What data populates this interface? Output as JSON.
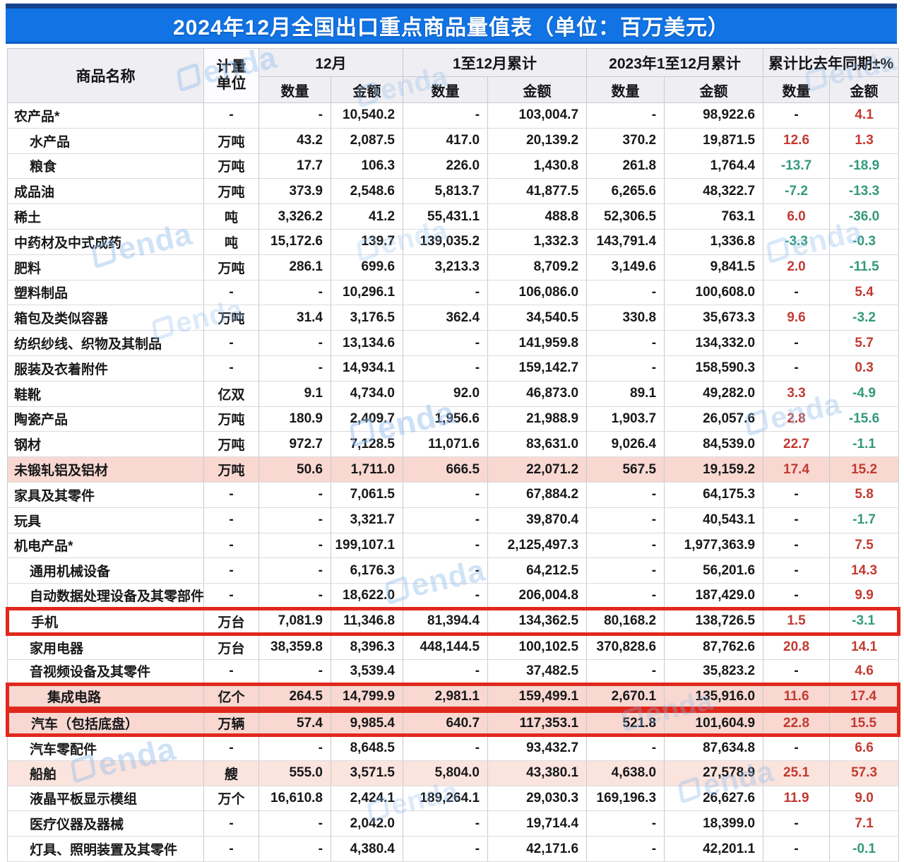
{
  "title": "2024年12月全国出口重点商品量值表（单位：百万美元）",
  "watermark": {
    "text": "enda"
  },
  "colors": {
    "title_bar": "#1173e4",
    "positive_pct": "#c23a31",
    "negative_pct": "#33997b",
    "highlight_pink": "#f8d8d1",
    "highlight_pink_light": "#fbe4de",
    "red_box_border": "#e0281c"
  },
  "table": {
    "header": {
      "commodity": "商品名称",
      "unit_line1": "计量",
      "unit_line2": "单位",
      "groups": [
        "12月",
        "1至12月累计",
        "2023年1至12月累计",
        "累计比去年同期±%"
      ],
      "quantity": "数量",
      "value": "金额"
    },
    "rows": [
      {
        "name": "农产品*",
        "indent": 0,
        "unit": "-",
        "q12": "-",
        "v12": "10,540.2",
        "qc": "-",
        "vc": "103,004.7",
        "q23": "-",
        "v23": "98,922.6",
        "qp": "-",
        "vp": "4.1",
        "highlight": "none",
        "box": false
      },
      {
        "name": "水产品",
        "indent": 1,
        "unit": "万吨",
        "q12": "43.2",
        "v12": "2,087.5",
        "qc": "417.0",
        "vc": "20,139.2",
        "q23": "370.2",
        "v23": "19,871.5",
        "qp": "12.6",
        "vp": "1.3",
        "highlight": "none",
        "box": false
      },
      {
        "name": "粮食",
        "indent": 1,
        "unit": "万吨",
        "q12": "17.7",
        "v12": "106.3",
        "qc": "226.0",
        "vc": "1,430.8",
        "q23": "261.8",
        "v23": "1,764.4",
        "qp": "-13.7",
        "vp": "-18.9",
        "highlight": "none",
        "box": false
      },
      {
        "name": "成品油",
        "indent": 0,
        "unit": "万吨",
        "q12": "373.9",
        "v12": "2,548.6",
        "qc": "5,813.7",
        "vc": "41,877.5",
        "q23": "6,265.6",
        "v23": "48,322.7",
        "qp": "-7.2",
        "vp": "-13.3",
        "highlight": "none",
        "box": false
      },
      {
        "name": "稀土",
        "indent": 0,
        "unit": "吨",
        "q12": "3,326.2",
        "v12": "41.2",
        "qc": "55,431.1",
        "vc": "488.8",
        "q23": "52,306.5",
        "v23": "763.1",
        "qp": "6.0",
        "vp": "-36.0",
        "highlight": "none",
        "box": false
      },
      {
        "name": "中药材及中式成药",
        "indent": 0,
        "unit": "吨",
        "q12": "15,172.6",
        "v12": "139.7",
        "qc": "139,035.2",
        "vc": "1,332.3",
        "q23": "143,791.4",
        "v23": "1,336.8",
        "qp": "-3.3",
        "vp": "-0.3",
        "highlight": "none",
        "box": false
      },
      {
        "name": "肥料",
        "indent": 0,
        "unit": "万吨",
        "q12": "286.1",
        "v12": "699.6",
        "qc": "3,213.3",
        "vc": "8,709.2",
        "q23": "3,149.6",
        "v23": "9,841.5",
        "qp": "2.0",
        "vp": "-11.5",
        "highlight": "none",
        "box": false
      },
      {
        "name": "塑料制品",
        "indent": 0,
        "unit": "-",
        "q12": "-",
        "v12": "10,296.1",
        "qc": "-",
        "vc": "106,086.0",
        "q23": "-",
        "v23": "100,608.0",
        "qp": "-",
        "vp": "5.4",
        "highlight": "none",
        "box": false
      },
      {
        "name": "箱包及类似容器",
        "indent": 0,
        "unit": "万吨",
        "q12": "31.4",
        "v12": "3,176.5",
        "qc": "362.4",
        "vc": "34,540.5",
        "q23": "330.8",
        "v23": "35,673.3",
        "qp": "9.6",
        "vp": "-3.2",
        "highlight": "none",
        "box": false
      },
      {
        "name": "纺织纱线、织物及其制品",
        "indent": 0,
        "unit": "-",
        "q12": "-",
        "v12": "13,134.6",
        "qc": "-",
        "vc": "141,959.8",
        "q23": "-",
        "v23": "134,332.0",
        "qp": "-",
        "vp": "5.7",
        "highlight": "none",
        "box": false
      },
      {
        "name": "服装及衣着附件",
        "indent": 0,
        "unit": "-",
        "q12": "-",
        "v12": "14,934.1",
        "qc": "-",
        "vc": "159,142.7",
        "q23": "-",
        "v23": "158,590.3",
        "qp": "-",
        "vp": "0.3",
        "highlight": "none",
        "box": false
      },
      {
        "name": "鞋靴",
        "indent": 0,
        "unit": "亿双",
        "q12": "9.1",
        "v12": "4,734.0",
        "qc": "92.0",
        "vc": "46,873.0",
        "q23": "89.1",
        "v23": "49,282.0",
        "qp": "3.3",
        "vp": "-4.9",
        "highlight": "none",
        "box": false
      },
      {
        "name": "陶瓷产品",
        "indent": 0,
        "unit": "万吨",
        "q12": "180.9",
        "v12": "2,409.7",
        "qc": "1,956.6",
        "vc": "21,988.9",
        "q23": "1,903.7",
        "v23": "26,057.6",
        "qp": "2.8",
        "vp": "-15.6",
        "highlight": "none",
        "box": false
      },
      {
        "name": "钢材",
        "indent": 0,
        "unit": "万吨",
        "q12": "972.7",
        "v12": "7,128.5",
        "qc": "11,071.6",
        "vc": "83,631.0",
        "q23": "9,026.4",
        "v23": "84,539.0",
        "qp": "22.7",
        "vp": "-1.1",
        "highlight": "none",
        "box": false
      },
      {
        "name": "未锻轧铝及铝材",
        "indent": 0,
        "unit": "万吨",
        "q12": "50.6",
        "v12": "1,711.0",
        "qc": "666.5",
        "vc": "22,071.2",
        "q23": "567.5",
        "v23": "19,159.2",
        "qp": "17.4",
        "vp": "15.2",
        "highlight": "pink",
        "box": false
      },
      {
        "name": "家具及其零件",
        "indent": 0,
        "unit": "-",
        "q12": "-",
        "v12": "7,061.5",
        "qc": "-",
        "vc": "67,884.2",
        "q23": "-",
        "v23": "64,175.3",
        "qp": "-",
        "vp": "5.8",
        "highlight": "none",
        "box": false
      },
      {
        "name": "玩具",
        "indent": 0,
        "unit": "-",
        "q12": "-",
        "v12": "3,321.7",
        "qc": "-",
        "vc": "39,870.4",
        "q23": "-",
        "v23": "40,543.1",
        "qp": "-",
        "vp": "-1.7",
        "highlight": "none",
        "box": false
      },
      {
        "name": "机电产品*",
        "indent": 0,
        "unit": "-",
        "q12": "-",
        "v12": "199,107.1",
        "qc": "-",
        "vc": "2,125,497.3",
        "q23": "-",
        "v23": "1,977,363.9",
        "qp": "-",
        "vp": "7.5",
        "highlight": "none",
        "box": false
      },
      {
        "name": "通用机械设备",
        "indent": 1,
        "unit": "-",
        "q12": "-",
        "v12": "6,176.3",
        "qc": "-",
        "vc": "64,212.5",
        "q23": "-",
        "v23": "56,201.6",
        "qp": "-",
        "vp": "14.3",
        "highlight": "none",
        "box": false
      },
      {
        "name": "自动数据处理设备及其零部件",
        "indent": 1,
        "unit": "-",
        "q12": "-",
        "v12": "18,622.0",
        "qc": "-",
        "vc": "206,004.8",
        "q23": "-",
        "v23": "187,429.0",
        "qp": "-",
        "vp": "9.9",
        "highlight": "none",
        "box": false
      },
      {
        "name": "手机",
        "indent": 1,
        "unit": "万台",
        "q12": "7,081.9",
        "v12": "11,346.8",
        "qc": "81,394.4",
        "vc": "134,362.5",
        "q23": "80,168.2",
        "v23": "138,726.5",
        "qp": "1.5",
        "vp": "-3.1",
        "highlight": "none",
        "box": true
      },
      {
        "name": "家用电器",
        "indent": 1,
        "unit": "万台",
        "q12": "38,359.8",
        "v12": "8,396.3",
        "qc": "448,144.5",
        "vc": "100,102.5",
        "q23": "370,828.6",
        "v23": "87,762.6",
        "qp": "20.8",
        "vp": "14.1",
        "highlight": "none",
        "box": false
      },
      {
        "name": "音视频设备及其零件",
        "indent": 1,
        "unit": "-",
        "q12": "-",
        "v12": "3,539.4",
        "qc": "-",
        "vc": "37,482.5",
        "q23": "-",
        "v23": "35,823.2",
        "qp": "-",
        "vp": "4.6",
        "highlight": "none",
        "box": false
      },
      {
        "name": "集成电路",
        "indent": 2,
        "unit": "亿个",
        "q12": "264.5",
        "v12": "14,799.9",
        "qc": "2,981.1",
        "vc": "159,499.1",
        "q23": "2,670.1",
        "v23": "135,916.0",
        "qp": "11.6",
        "vp": "17.4",
        "highlight": "pink",
        "box": true
      },
      {
        "name": "汽车（包括底盘）",
        "indent": 1,
        "unit": "万辆",
        "q12": "57.4",
        "v12": "9,985.4",
        "qc": "640.7",
        "vc": "117,353.1",
        "q23": "521.8",
        "v23": "101,604.9",
        "qp": "22.8",
        "vp": "15.5",
        "highlight": "pink",
        "box": true,
        "box_after": true
      },
      {
        "name": "汽车零配件",
        "indent": 1,
        "unit": "-",
        "q12": "-",
        "v12": "8,648.5",
        "qc": "-",
        "vc": "93,432.7",
        "q23": "-",
        "v23": "87,634.8",
        "qp": "-",
        "vp": "6.6",
        "highlight": "none",
        "box": false
      },
      {
        "name": "船舶",
        "indent": 1,
        "unit": "艘",
        "q12": "555.0",
        "v12": "3,571.5",
        "qc": "5,804.0",
        "vc": "43,380.1",
        "q23": "4,638.0",
        "v23": "27,578.9",
        "qp": "25.1",
        "vp": "57.3",
        "highlight": "pink-light",
        "box": false
      },
      {
        "name": "液晶平板显示模组",
        "indent": 1,
        "unit": "万个",
        "q12": "16,610.8",
        "v12": "2,424.1",
        "qc": "189,264.1",
        "vc": "29,030.3",
        "q23": "169,196.3",
        "v23": "26,627.6",
        "qp": "11.9",
        "vp": "9.0",
        "highlight": "none",
        "box": false
      },
      {
        "name": "医疗仪器及器械",
        "indent": 1,
        "unit": "-",
        "q12": "-",
        "v12": "2,042.0",
        "qc": "-",
        "vc": "19,714.4",
        "q23": "-",
        "v23": "18,399.0",
        "qp": "-",
        "vp": "7.1",
        "highlight": "none",
        "box": false
      },
      {
        "name": "灯具、照明装置及其零件",
        "indent": 1,
        "unit": "-",
        "q12": "-",
        "v12": "4,380.4",
        "qc": "-",
        "vc": "42,171.6",
        "q23": "-",
        "v23": "42,201.1",
        "qp": "-",
        "vp": "-0.1",
        "highlight": "none",
        "box": false
      }
    ]
  }
}
